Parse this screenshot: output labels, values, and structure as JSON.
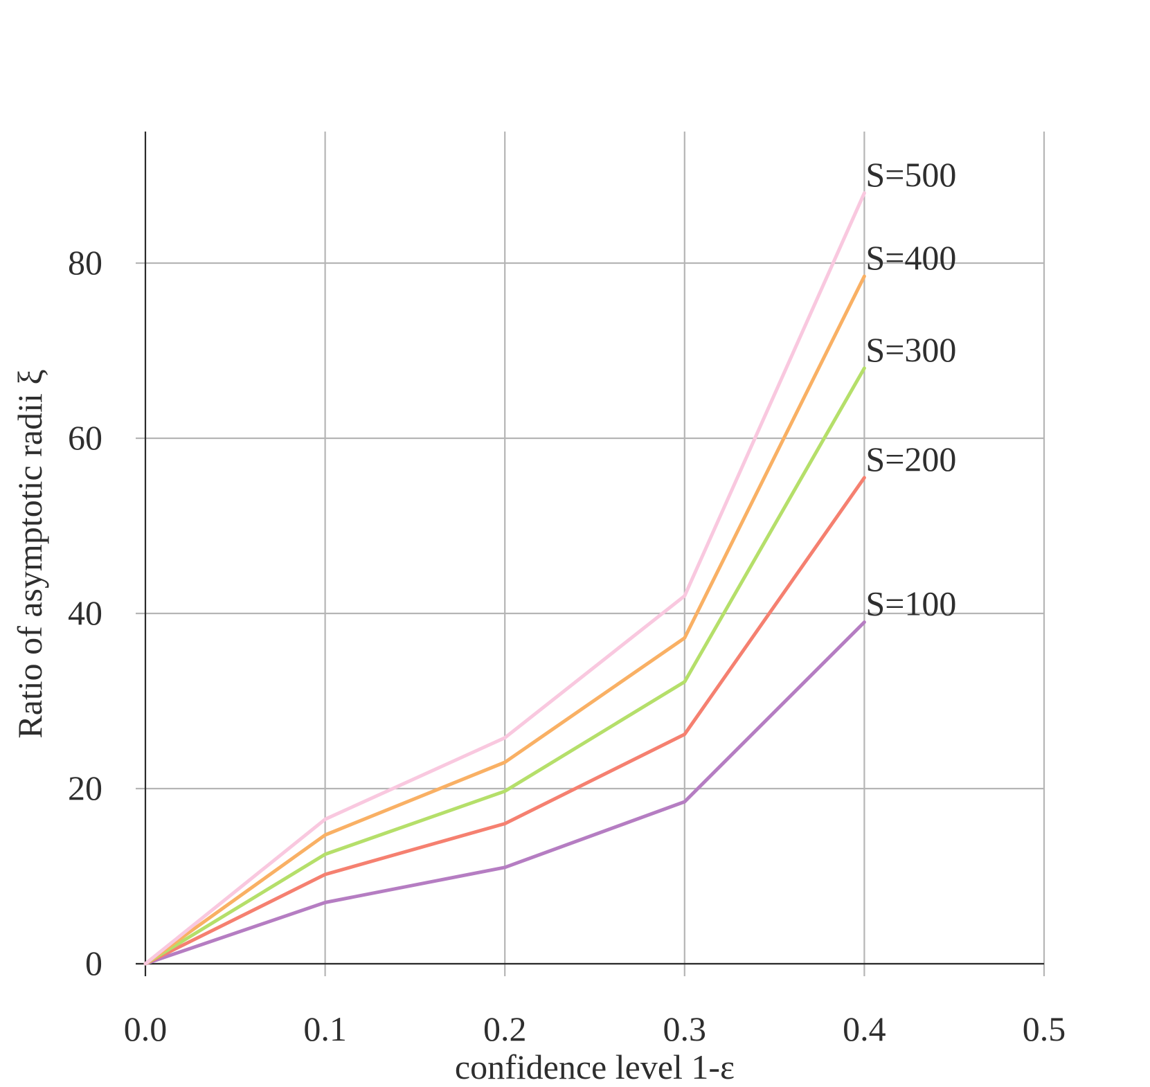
{
  "chart_data": {
    "type": "line",
    "title": "",
    "xlabel": "confidence level 1-ε",
    "ylabel": "Ratio of asymptotic radii ξ",
    "xlim": [
      0,
      0.5
    ],
    "ylim": [
      0,
      95
    ],
    "x": [
      0,
      0.1,
      0.2,
      0.3,
      0.4
    ],
    "x_ticks": [
      0,
      0.1,
      0.2,
      0.3,
      0.4,
      0.5
    ],
    "x_tick_labels": [
      "0.0",
      "0.1",
      "0.2",
      "0.3",
      "0.4",
      "0.5"
    ],
    "y_ticks": [
      0,
      20,
      40,
      60,
      80
    ],
    "y_tick_labels": [
      "0",
      "20",
      "40",
      "60",
      "80"
    ],
    "grid": true,
    "series": [
      {
        "name": "S=100",
        "color": "#b57dc2",
        "values": [
          0,
          7,
          11,
          18.5,
          39
        ]
      },
      {
        "name": "S=200",
        "color": "#f58070",
        "values": [
          0,
          10.2,
          16,
          26.2,
          55.5
        ]
      },
      {
        "name": "S=300",
        "color": "#b5df6a",
        "values": [
          0,
          12.5,
          19.7,
          32.2,
          68
        ]
      },
      {
        "name": "S=400",
        "color": "#f9b064",
        "values": [
          0,
          14.7,
          23,
          37.2,
          78.5
        ]
      },
      {
        "name": "S=500",
        "color": "#f9c8df",
        "values": [
          0,
          16.5,
          25.8,
          42,
          88
        ]
      }
    ],
    "series_label_offsets": [
      0,
      0,
      0,
      0,
      0
    ]
  }
}
